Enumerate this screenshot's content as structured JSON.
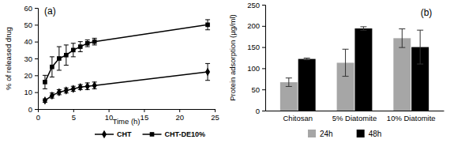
{
  "chart_data": [
    {
      "type": "line",
      "title": "(a)",
      "x_label": "Time (h)",
      "y_label": "% of released drug",
      "x": [
        1,
        2,
        3,
        4,
        5,
        6,
        7,
        8,
        24
      ],
      "xlim": [
        0,
        25
      ],
      "xticks": [
        0,
        5,
        10,
        15,
        20,
        25
      ],
      "ylim": [
        0,
        60
      ],
      "yticks": [
        0,
        10,
        20,
        30,
        40,
        50,
        60
      ],
      "legend": "bottom",
      "series": [
        {
          "name": "CHT",
          "color": "#000000",
          "marker": "diamond",
          "line_style": "solid",
          "values": [
            5,
            8,
            10,
            11,
            12,
            13,
            13.5,
            14,
            22
          ],
          "errors": [
            1,
            1.5,
            1.5,
            1.5,
            1.5,
            1.5,
            2,
            2,
            5
          ]
        },
        {
          "name": "CHT-DE10%",
          "color": "#000000",
          "marker": "square",
          "line_style": "solid",
          "values": [
            16,
            25,
            30,
            32,
            35,
            37,
            39,
            40,
            50
          ],
          "errors": [
            4,
            6,
            7,
            6,
            4,
            3,
            2,
            2,
            3
          ]
        }
      ]
    },
    {
      "type": "bar",
      "title": "(b)",
      "y_label": "Protein adsorption (µg/ml)",
      "categories": [
        "Chitosan",
        "5% Diatomite",
        "10% Diatomite"
      ],
      "ylim": [
        0,
        250
      ],
      "yticks": [
        0,
        50,
        100,
        150,
        200,
        250
      ],
      "legend": "bottom",
      "series": [
        {
          "name": "24h",
          "color": "#a6a6a6",
          "values": [
            67,
            113,
            171
          ],
          "errors": [
            10,
            32,
            22
          ]
        },
        {
          "name": "48h",
          "color": "#000000",
          "values": [
            122,
            194,
            150
          ],
          "errors": [
            2,
            4,
            40
          ]
        }
      ]
    }
  ]
}
